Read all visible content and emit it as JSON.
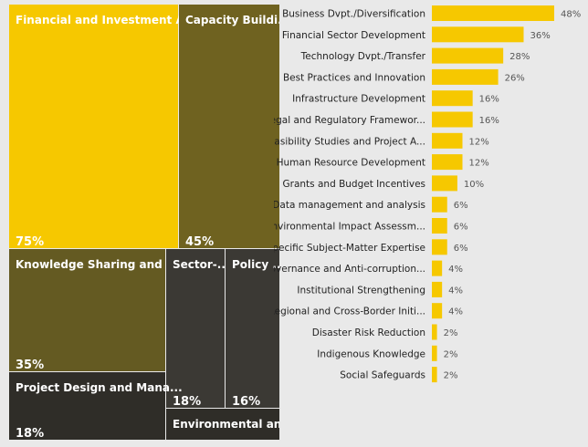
{
  "chart_data": [
    {
      "type": "treemap",
      "tiles": [
        {
          "label": "Financial and Investment A...",
          "value": 75,
          "value_label": "75%",
          "color": "#f6c800"
        },
        {
          "label": "Capacity Buildi...",
          "value": 45,
          "value_label": "45%",
          "color": "#6f6220"
        },
        {
          "label": "Knowledge Sharing and ...",
          "value": 35,
          "value_label": "35%",
          "color": "#645a22"
        },
        {
          "label": "Sector-...",
          "value": 18,
          "value_label": "18%",
          "color": "#3b3934"
        },
        {
          "label": "Policy ...",
          "value": 16,
          "value_label": "16%",
          "color": "#3b3934"
        },
        {
          "label": "Project Design and Mana...",
          "value": 18,
          "value_label": "18%",
          "color": "#2f2d28"
        },
        {
          "label": "Environmental an...",
          "value": null,
          "value_label": "",
          "color": "#2f2d28"
        }
      ]
    },
    {
      "type": "bar",
      "orientation": "horizontal",
      "bar_color": "#f6c800",
      "categories": [
        "Business Dvpt./Diversification",
        "Financial Sector Development",
        "Technology Dvpt./Transfer",
        "Best Practices and Innovation",
        "Infrastructure Development",
        "Legal and Regulatory Framewor...",
        "Feasibility Studies and Project A...",
        "Human Resource Development",
        "Grants and Budget Incentives",
        "Data management and analysis",
        "Environmental Impact Assessm...",
        "Specific Subject-Matter Expertise",
        "Governance and Anti-corruption...",
        "Institutional Strengthening",
        "Regional and Cross-Border Initi...",
        "Disaster Risk Reduction",
        "Indigenous Knowledge",
        "Social Safeguards"
      ],
      "values": [
        48,
        36,
        28,
        26,
        16,
        16,
        12,
        12,
        10,
        6,
        6,
        6,
        4,
        4,
        4,
        2,
        2,
        2
      ],
      "value_labels": [
        "48%",
        "36%",
        "28%",
        "26%",
        "16%",
        "16%",
        "12%",
        "12%",
        "10%",
        "6%",
        "6%",
        "6%",
        "4%",
        "4%",
        "4%",
        "2%",
        "2%",
        "2%"
      ],
      "xlim": [
        0,
        48
      ]
    }
  ]
}
